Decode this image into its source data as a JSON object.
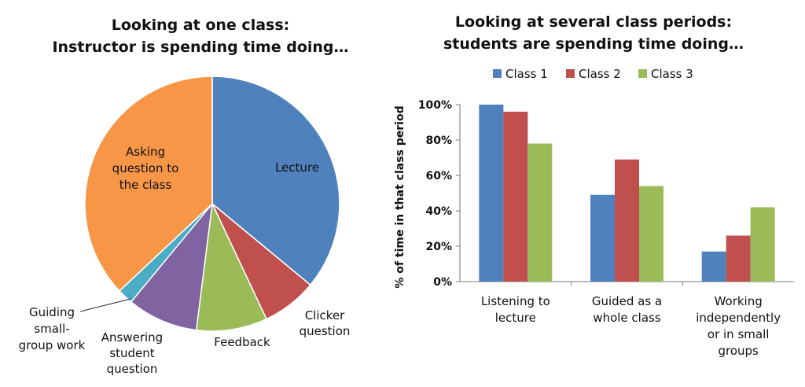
{
  "chart_data": [
    {
      "type": "pie",
      "title": [
        "Looking at one class:",
        "Instructor is spending time doing…"
      ],
      "slices": [
        {
          "label": [
            "Lecture"
          ],
          "value": 36,
          "color": "#4F81BD"
        },
        {
          "label": [
            "Clicker",
            "question"
          ],
          "value": 7,
          "color": "#C0504D"
        },
        {
          "label": [
            "Feedback"
          ],
          "value": 9,
          "color": "#9BBB59"
        },
        {
          "label": [
            "Answering",
            "student",
            "question"
          ],
          "value": 9,
          "color": "#8064A2"
        },
        {
          "label": [
            "Guiding",
            "small-",
            "group work"
          ],
          "value": 2,
          "color": "#4BACC6"
        },
        {
          "label": [
            "Asking",
            "question to",
            "the class"
          ],
          "value": 37,
          "color": "#F79646"
        }
      ]
    },
    {
      "type": "bar",
      "title": [
        "Looking at several class periods:",
        "students are spending time doing…"
      ],
      "ylabel": "% of time in that class period",
      "ylim": [
        0,
        100
      ],
      "yticks": [
        "0%",
        "20%",
        "40%",
        "60%",
        "80%",
        "100%"
      ],
      "categories": [
        [
          "Listening to",
          "lecture"
        ],
        [
          "Guided as a",
          "whole class"
        ],
        [
          "Working",
          "independently",
          "or in small",
          "groups"
        ]
      ],
      "series": [
        {
          "name": "Class 1",
          "values": [
            100,
            49,
            17
          ],
          "color": "#4F81BD"
        },
        {
          "name": "Class 2",
          "values": [
            96,
            69,
            26
          ],
          "color": "#C0504D"
        },
        {
          "name": "Class 3",
          "values": [
            78,
            54,
            42
          ],
          "color": "#9BBB59"
        }
      ],
      "legend": "top",
      "grid": false
    }
  ]
}
